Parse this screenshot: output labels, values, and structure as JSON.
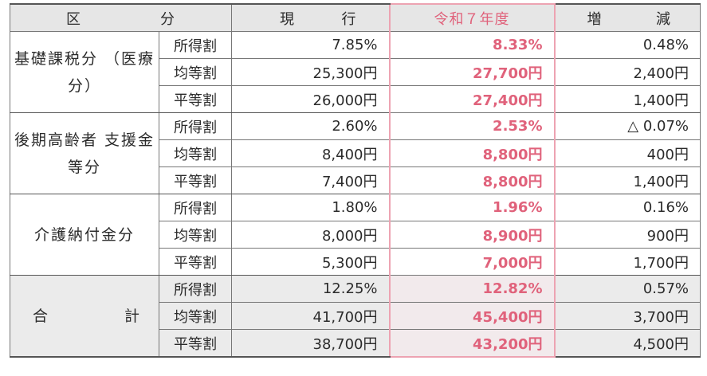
{
  "headers": {
    "col1_left": "区",
    "col1_right": "分",
    "col2_left": "現",
    "col2_right": "行",
    "col3": "令和７年度",
    "col4_left": "増",
    "col4_right": "減"
  },
  "groups": [
    {
      "label_lines": [
        "基礎課税分",
        "（医療分）"
      ],
      "rows": [
        {
          "type": "所得割",
          "current": "7.85%",
          "new": "8.33%",
          "diff": "0.48%"
        },
        {
          "type": "均等割",
          "current": "25,300円",
          "new": "27,700円",
          "diff": "2,400円"
        },
        {
          "type": "平等割",
          "current": "26,000円",
          "new": "27,400円",
          "diff": "1,400円"
        }
      ]
    },
    {
      "label_lines": [
        "後期高齢者",
        "支援金等分"
      ],
      "rows": [
        {
          "type": "所得割",
          "current": "2.60%",
          "new": "2.53%",
          "diff": "△ 0.07%"
        },
        {
          "type": "均等割",
          "current": "8,400円",
          "new": "8,800円",
          "diff": "400円"
        },
        {
          "type": "平等割",
          "current": "7,400円",
          "new": "8,800円",
          "diff": "1,400円"
        }
      ]
    },
    {
      "label_lines": [
        "介護納付金分"
      ],
      "rows": [
        {
          "type": "所得割",
          "current": "1.80%",
          "new": "1.96%",
          "diff": "0.16%"
        },
        {
          "type": "均等割",
          "current": "8,000円",
          "new": "8,900円",
          "diff": "900円"
        },
        {
          "type": "平等割",
          "current": "5,300円",
          "new": "7,000円",
          "diff": "1,700円"
        }
      ]
    },
    {
      "label_left": "合",
      "label_right": "計",
      "rows": [
        {
          "type": "所得割",
          "current": "12.25%",
          "new": "12.82%",
          "diff": "0.57%"
        },
        {
          "type": "均等割",
          "current": "41,700円",
          "new": "45,400円",
          "diff": "3,700円"
        },
        {
          "type": "平等割",
          "current": "38,700円",
          "new": "43,200円",
          "diff": "4,500円"
        }
      ]
    }
  ],
  "colors": {
    "accent": "#e0627b",
    "accent_border": "#eda3b2",
    "header_bg": "#e6e6e6",
    "total_bg": "#ebebeb"
  }
}
